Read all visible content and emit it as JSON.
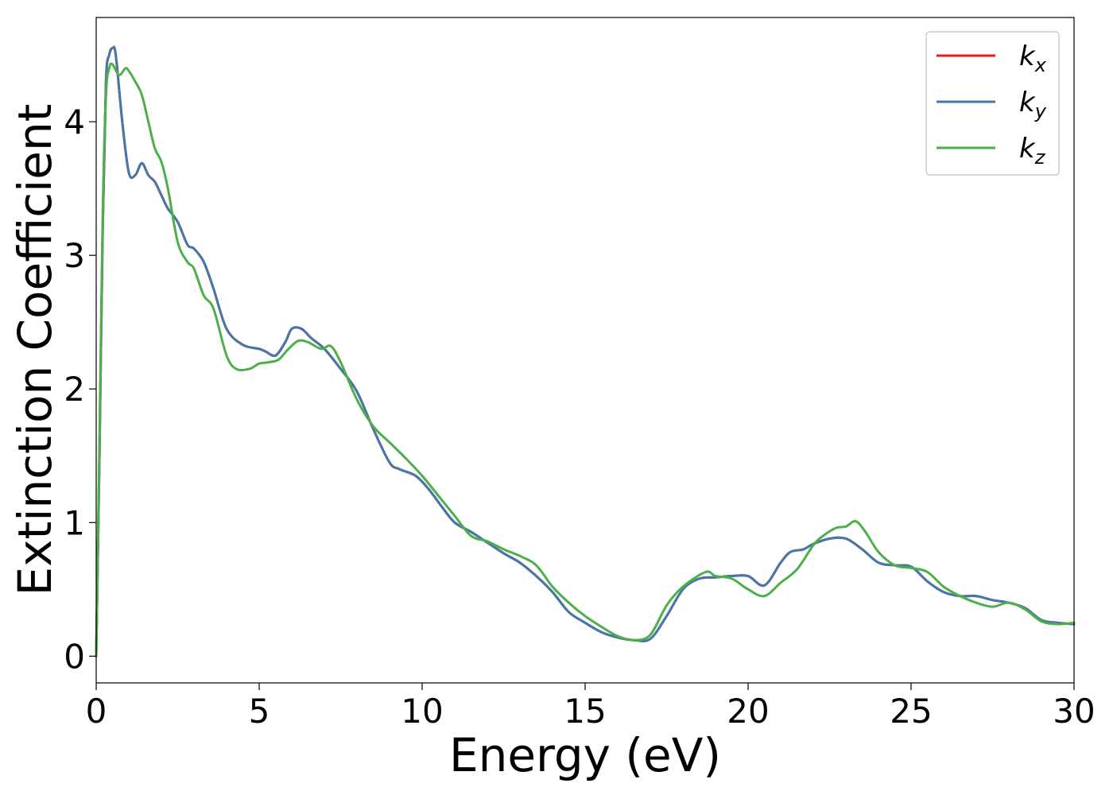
{
  "chart_data": {
    "type": "line",
    "title": "",
    "xlabel": "Energy (eV)",
    "ylabel": "Extinction Coefficient",
    "xlim": [
      0,
      30
    ],
    "ylim": [
      -0.2,
      4.78
    ],
    "xticks": [
      0,
      5,
      10,
      15,
      20,
      25,
      30
    ],
    "yticks": [
      0,
      1,
      2,
      3,
      4
    ],
    "grid": false,
    "legend": "top-right",
    "series": [
      {
        "name": "k",
        "subscript": "x",
        "color": "#e41a1c",
        "x": [
          0,
          0.1,
          0.2,
          0.3,
          0.4,
          0.5,
          0.6,
          0.8,
          1.0,
          1.2,
          1.4,
          1.6,
          1.8,
          2.0,
          2.2,
          2.5,
          2.8,
          3.0,
          3.3,
          3.6,
          4.0,
          4.5,
          5.0,
          5.2,
          5.5,
          5.8,
          6.0,
          6.3,
          6.6,
          7.0,
          7.5,
          8.0,
          8.5,
          9.0,
          9.3,
          9.8,
          10.2,
          10.6,
          11.0,
          11.5,
          12.0,
          12.5,
          13.0,
          13.5,
          14.0,
          14.5,
          15.0,
          15.5,
          16.0,
          16.5,
          17.0,
          17.5,
          18.0,
          18.5,
          19.0,
          19.5,
          20.0,
          20.5,
          21.0,
          21.3,
          21.7,
          22.0,
          22.5,
          23.0,
          23.5,
          24.0,
          24.5,
          25.0,
          25.5,
          26.0,
          26.5,
          27.0,
          27.5,
          28.0,
          28.5,
          29.0,
          29.5,
          30.0
        ],
        "y": [
          0.0,
          1.5,
          3.2,
          4.3,
          4.5,
          4.55,
          4.5,
          4.0,
          3.62,
          3.6,
          3.69,
          3.6,
          3.55,
          3.45,
          3.35,
          3.25,
          3.08,
          3.05,
          2.95,
          2.75,
          2.45,
          2.33,
          2.3,
          2.28,
          2.25,
          2.35,
          2.45,
          2.45,
          2.38,
          2.3,
          2.15,
          1.98,
          1.7,
          1.45,
          1.4,
          1.35,
          1.25,
          1.12,
          1.0,
          0.93,
          0.85,
          0.77,
          0.7,
          0.6,
          0.48,
          0.33,
          0.25,
          0.18,
          0.14,
          0.12,
          0.13,
          0.3,
          0.5,
          0.58,
          0.59,
          0.6,
          0.6,
          0.53,
          0.7,
          0.78,
          0.8,
          0.84,
          0.88,
          0.88,
          0.8,
          0.7,
          0.68,
          0.67,
          0.56,
          0.48,
          0.45,
          0.45,
          0.42,
          0.4,
          0.36,
          0.27,
          0.25,
          0.24
        ]
      },
      {
        "name": "k",
        "subscript": "y",
        "color": "#4477aa",
        "x": [
          0,
          0.1,
          0.2,
          0.3,
          0.4,
          0.5,
          0.6,
          0.8,
          1.0,
          1.2,
          1.4,
          1.6,
          1.8,
          2.0,
          2.2,
          2.5,
          2.8,
          3.0,
          3.3,
          3.6,
          4.0,
          4.5,
          5.0,
          5.2,
          5.5,
          5.8,
          6.0,
          6.3,
          6.6,
          7.0,
          7.5,
          8.0,
          8.5,
          9.0,
          9.3,
          9.8,
          10.2,
          10.6,
          11.0,
          11.5,
          12.0,
          12.5,
          13.0,
          13.5,
          14.0,
          14.5,
          15.0,
          15.5,
          16.0,
          16.5,
          17.0,
          17.5,
          18.0,
          18.5,
          19.0,
          19.5,
          20.0,
          20.5,
          21.0,
          21.3,
          21.7,
          22.0,
          22.5,
          23.0,
          23.5,
          24.0,
          24.5,
          25.0,
          25.5,
          26.0,
          26.5,
          27.0,
          27.5,
          28.0,
          28.5,
          29.0,
          29.5,
          30.0
        ],
        "y": [
          0.0,
          1.5,
          3.2,
          4.3,
          4.5,
          4.55,
          4.5,
          4.0,
          3.62,
          3.6,
          3.69,
          3.6,
          3.55,
          3.45,
          3.35,
          3.25,
          3.08,
          3.05,
          2.95,
          2.75,
          2.45,
          2.33,
          2.3,
          2.28,
          2.25,
          2.35,
          2.45,
          2.45,
          2.38,
          2.3,
          2.15,
          1.98,
          1.7,
          1.45,
          1.4,
          1.35,
          1.25,
          1.12,
          1.0,
          0.93,
          0.85,
          0.77,
          0.7,
          0.6,
          0.48,
          0.33,
          0.25,
          0.18,
          0.14,
          0.12,
          0.13,
          0.3,
          0.5,
          0.58,
          0.59,
          0.6,
          0.6,
          0.53,
          0.7,
          0.78,
          0.8,
          0.84,
          0.88,
          0.88,
          0.8,
          0.7,
          0.68,
          0.67,
          0.56,
          0.48,
          0.45,
          0.45,
          0.42,
          0.4,
          0.36,
          0.27,
          0.25,
          0.24
        ]
      },
      {
        "name": "k",
        "subscript": "z",
        "color": "#4daf4a",
        "x": [
          0,
          0.1,
          0.2,
          0.3,
          0.4,
          0.5,
          0.7,
          0.9,
          1.0,
          1.2,
          1.4,
          1.6,
          1.8,
          2.0,
          2.2,
          2.5,
          2.8,
          3.0,
          3.3,
          3.6,
          4.0,
          4.3,
          4.7,
          5.0,
          5.3,
          5.6,
          5.9,
          6.2,
          6.5,
          6.9,
          7.2,
          7.5,
          8.0,
          8.5,
          9.0,
          9.5,
          10.0,
          10.5,
          11.0,
          11.5,
          12.0,
          12.5,
          13.0,
          13.5,
          14.0,
          14.5,
          15.0,
          15.5,
          16.0,
          16.5,
          17.0,
          17.5,
          18.0,
          18.7,
          19.0,
          19.5,
          20.0,
          20.5,
          21.0,
          21.5,
          22.0,
          22.3,
          22.7,
          23.0,
          23.3,
          23.6,
          24.0,
          24.5,
          25.0,
          25.5,
          26.0,
          26.5,
          27.0,
          27.5,
          28.0,
          28.5,
          29.0,
          29.5,
          30.0
        ],
        "y": [
          0.0,
          1.6,
          3.3,
          4.2,
          4.4,
          4.43,
          4.35,
          4.4,
          4.38,
          4.3,
          4.2,
          4.0,
          3.8,
          3.7,
          3.5,
          3.1,
          2.95,
          2.9,
          2.7,
          2.6,
          2.25,
          2.15,
          2.15,
          2.19,
          2.2,
          2.22,
          2.3,
          2.36,
          2.35,
          2.3,
          2.32,
          2.2,
          1.92,
          1.72,
          1.6,
          1.48,
          1.35,
          1.2,
          1.05,
          0.9,
          0.86,
          0.8,
          0.75,
          0.68,
          0.52,
          0.4,
          0.3,
          0.22,
          0.15,
          0.12,
          0.16,
          0.38,
          0.52,
          0.63,
          0.6,
          0.58,
          0.5,
          0.45,
          0.55,
          0.65,
          0.83,
          0.9,
          0.96,
          0.97,
          1.01,
          0.93,
          0.78,
          0.68,
          0.66,
          0.63,
          0.52,
          0.45,
          0.4,
          0.37,
          0.4,
          0.35,
          0.26,
          0.24,
          0.25
        ]
      }
    ]
  }
}
